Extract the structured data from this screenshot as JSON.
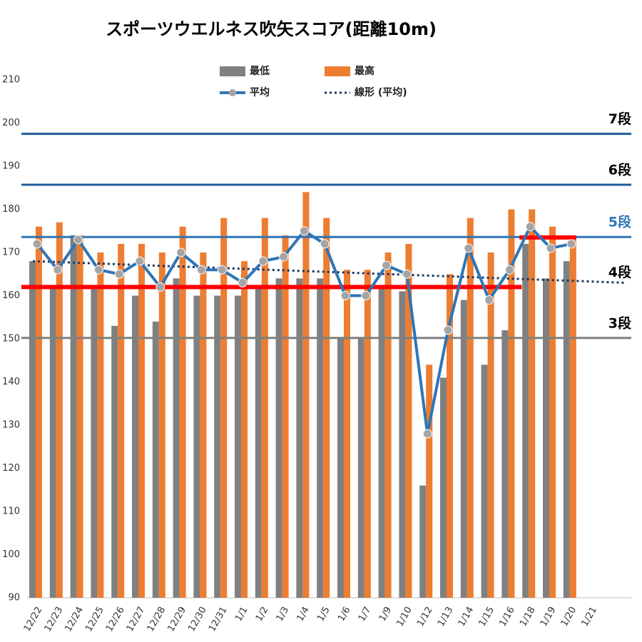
{
  "chart_data": {
    "type": "bar",
    "title": "スポーツウエルネス吹矢スコア(距離10m)",
    "categories": [
      "12/22",
      "12/23",
      "12/24",
      "12/25",
      "12/26",
      "12/27",
      "12/28",
      "12/29",
      "12/30",
      "12/31",
      "1/1",
      "1/2",
      "1/3",
      "1/4",
      "1/5",
      "1/6",
      "1/7",
      "1/9",
      "1/10",
      "1/12",
      "1/13",
      "1/14",
      "1/15",
      "1/16",
      "1/18",
      "1/19",
      "1/20",
      "1/21"
    ],
    "series": [
      {
        "name": "最低",
        "color": "#808080",
        "values": [
          168,
          162,
          174,
          162,
          153,
          160,
          154,
          164,
          160,
          160,
          160,
          162,
          164,
          164,
          164,
          150,
          150,
          162,
          161,
          116,
          141,
          159,
          144,
          152,
          172,
          164,
          168,
          null
        ]
      },
      {
        "name": "最高",
        "color": "#ed7d31",
        "values": [
          176,
          177,
          174,
          170,
          172,
          172,
          170,
          176,
          170,
          178,
          168,
          178,
          174,
          184,
          178,
          166,
          166,
          170,
          172,
          144,
          165,
          178,
          170,
          180,
          180,
          176,
          173,
          null
        ]
      },
      {
        "name": "平均",
        "type": "line",
        "color": "#2e75b6",
        "marker_color": "#a5a5a5",
        "values": [
          172,
          166,
          173,
          166,
          165,
          168,
          162,
          170,
          166,
          166,
          163,
          168,
          169,
          175,
          172,
          160,
          160,
          167,
          165,
          128,
          152,
          171,
          159,
          166,
          176,
          171,
          172,
          null
        ]
      }
    ],
    "trend": {
      "name": "線形 (平均)",
      "color": "#1f3864",
      "start": 168,
      "end": 163
    },
    "reference_lines": [
      {
        "label": "7段",
        "value": 197.5,
        "color": "#1f5c99",
        "label_color": "#000000"
      },
      {
        "label": "6段",
        "value": 185.7,
        "color": "#1f5c99",
        "label_color": "#000000"
      },
      {
        "label": "5段",
        "value": 173.6,
        "color": "#2e75b6",
        "label_color": "#2e75b6"
      },
      {
        "label": "4段",
        "value": 162,
        "color": null,
        "label_color": "#000000"
      },
      {
        "label": "3段",
        "value": 150.2,
        "color": "#808080",
        "label_color": "#000000"
      }
    ],
    "targets": [
      {
        "value": 162,
        "start": "12/22",
        "end": "1/16",
        "color": "#ff0000"
      },
      {
        "value": 173.5,
        "start": "1/18",
        "end": "1/20",
        "color": "#ff0000"
      }
    ],
    "ylim": [
      90,
      210
    ],
    "yticks": [
      90,
      100,
      110,
      120,
      130,
      140,
      150,
      160,
      170,
      180,
      190,
      200,
      210
    ]
  }
}
